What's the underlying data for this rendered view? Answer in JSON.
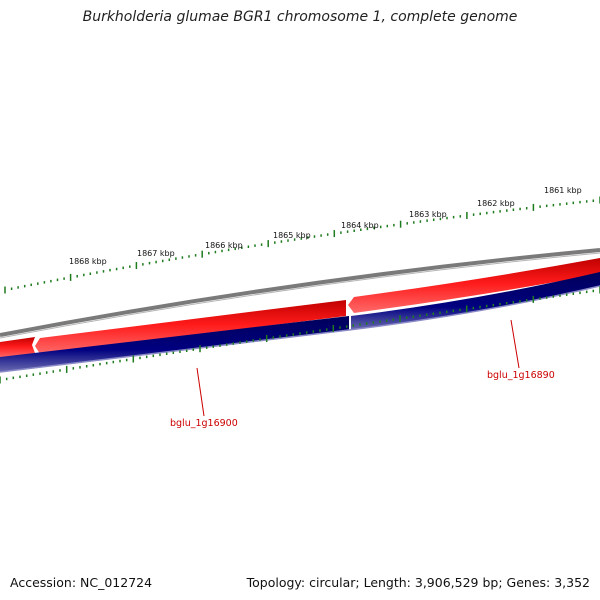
{
  "title": "Burkholderia glumae BGR1 chromosome 1, complete genome",
  "footer": {
    "accession": "Accession: NC_012724",
    "summary": "Topology: circular; Length: 3,906,529 bp; Genes: 3,352"
  },
  "ruler": {
    "labels": [
      "1861 kbp",
      "1862 kbp",
      "1863 kbp",
      "1864 kbp",
      "1865 kbp",
      "1866 kbp",
      "1867 kbp",
      "1868 kbp"
    ]
  },
  "genes": {
    "left": "bglu_1g16900",
    "right": "bglu_1g16890"
  },
  "colors": {
    "backbone": "#808080",
    "forward_strand": "#e60000",
    "reverse_strand": "#000080",
    "ticks": "#1e7b1e",
    "gene_label": "#cc0000"
  }
}
